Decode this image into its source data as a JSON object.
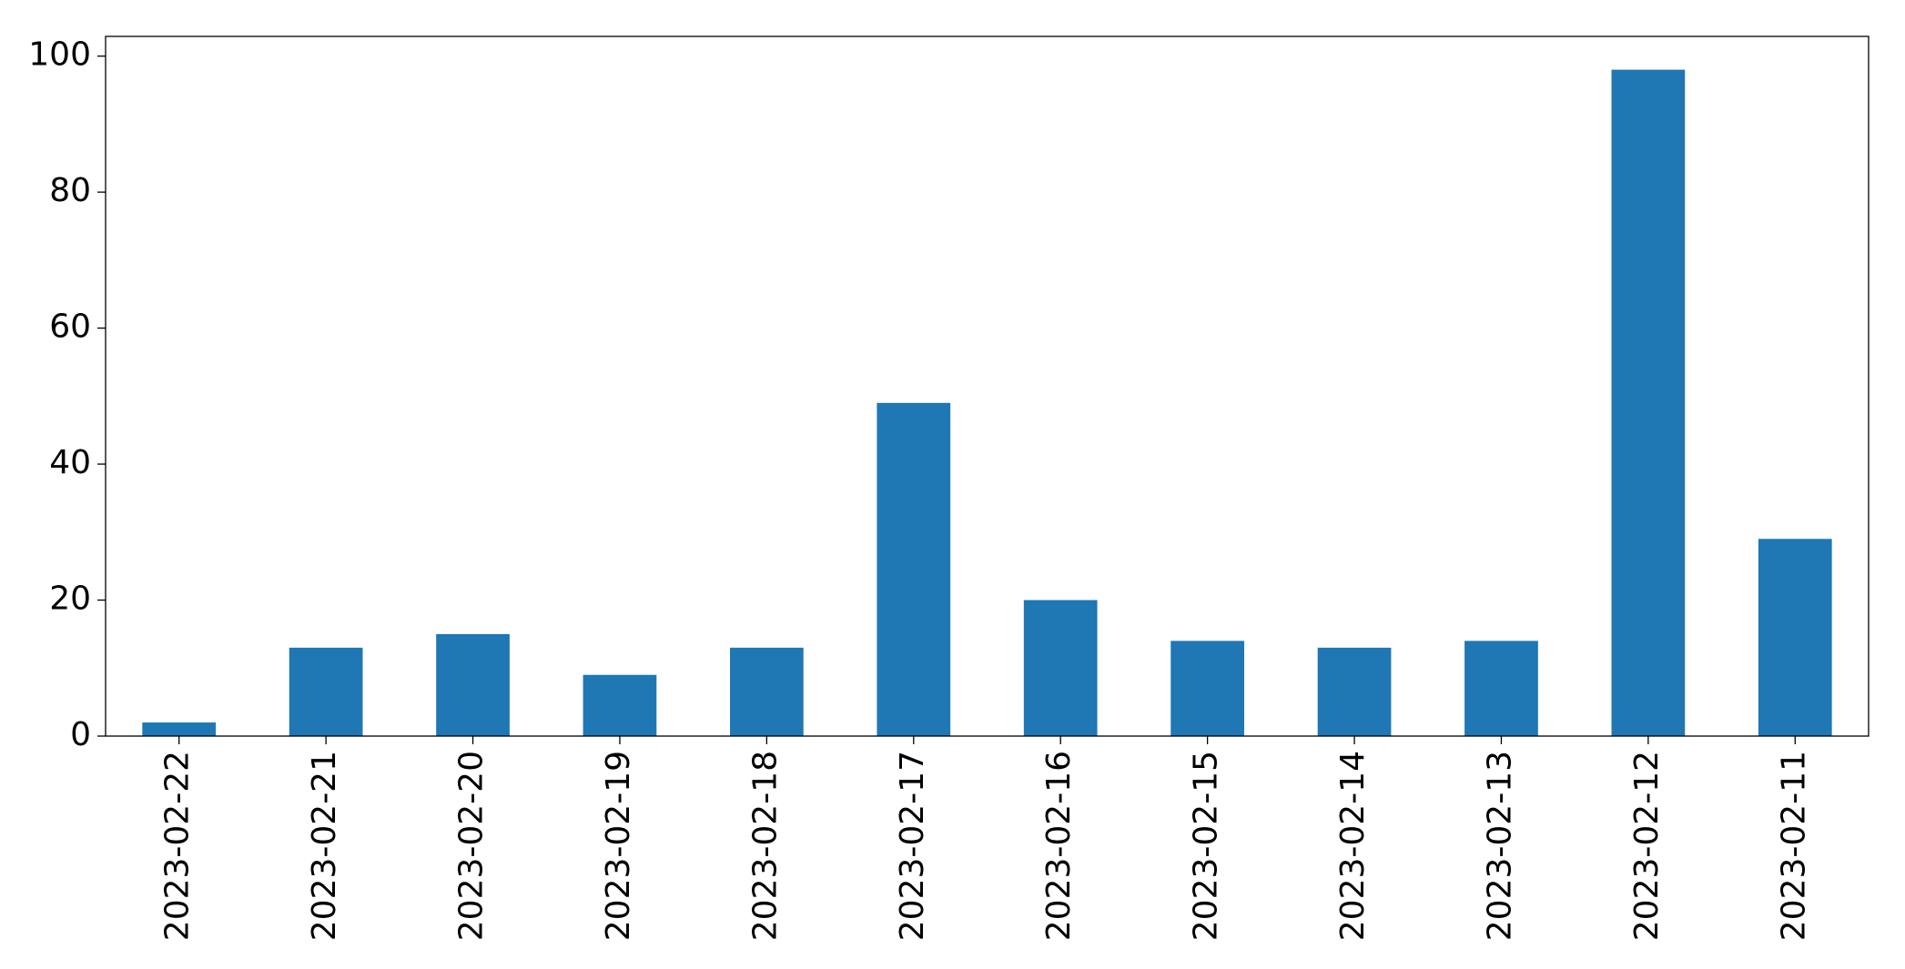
{
  "chart_data": {
    "type": "bar",
    "categories": [
      "2023-02-22",
      "2023-02-21",
      "2023-02-20",
      "2023-02-19",
      "2023-02-18",
      "2023-02-17",
      "2023-02-16",
      "2023-02-15",
      "2023-02-14",
      "2023-02-13",
      "2023-02-12",
      "2023-02-11"
    ],
    "values": [
      2,
      13,
      15,
      9,
      13,
      49,
      20,
      14,
      13,
      14,
      98,
      29
    ],
    "color": "#1f77b4",
    "ylim": [
      0,
      102.9
    ],
    "yticks": [
      0,
      20,
      40,
      60,
      80,
      100
    ],
    "grid": false
  }
}
